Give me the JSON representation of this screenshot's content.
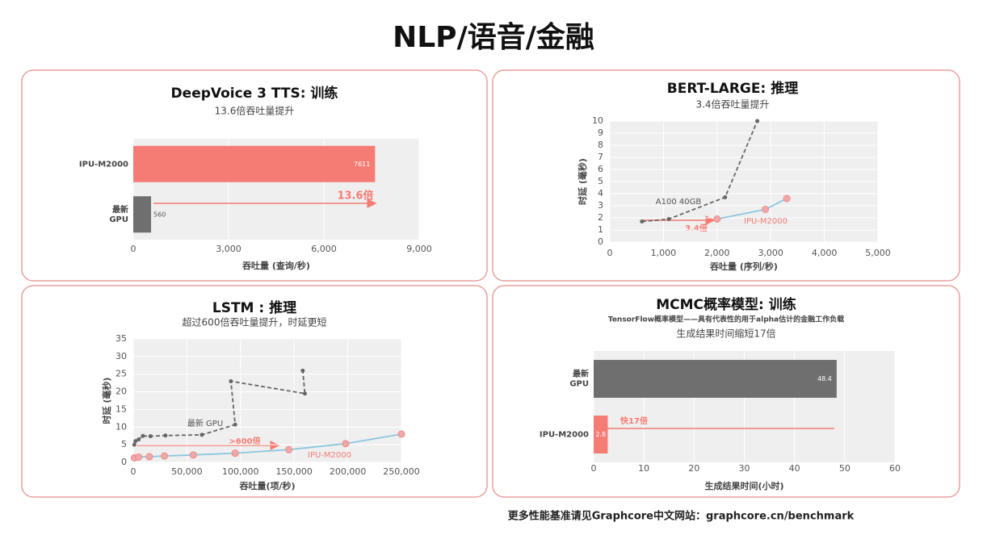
{
  "title": "NLP/语音/金融",
  "footer": "更多性能基准请见Graphcore中文网站：graphcore.cn/benchmark",
  "chart_data": [
    {
      "type": "hbar",
      "title": "DeepVoice 3 TTS: 训练",
      "subtitle": "13.6倍吞吐量提升",
      "categories": [
        "IPU-M2000",
        "最新 GPU"
      ],
      "values": [
        7611,
        560
      ],
      "colors": [
        "#f47c74",
        "#6f6f6f"
      ],
      "xlim": [
        0,
        9000
      ],
      "xticks": [
        0,
        {
          "value": 3000,
          "label": "3,000"
        },
        {
          "value": 6000,
          "label": "6,000"
        },
        {
          "value": 9000,
          "label": "9,000"
        }
      ],
      "xlabel": "吞吐量 (查询/秒)",
      "annotation": "13.6倍"
    },
    {
      "type": "line",
      "title": "BERT-LARGE: 推理",
      "subtitle": "3.4倍吞吐量提升",
      "xlim": [
        0,
        5000
      ],
      "xticks": [
        0,
        {
          "value": 1000,
          "label": "1,000"
        },
        {
          "value": 2000,
          "label": "2,000"
        },
        {
          "value": 3000,
          "label": "3,000"
        },
        {
          "value": 4000,
          "label": "4,000"
        },
        {
          "value": 5000,
          "label": "5,000"
        }
      ],
      "ylim": [
        0,
        10
      ],
      "yticks": [
        0,
        1,
        2,
        3,
        4,
        5,
        6,
        7,
        8,
        9,
        10
      ],
      "xlabel": "吞吐量 (序列/秒)",
      "ylabel": "时延 (毫秒)",
      "annotation": "3.4倍",
      "series": [
        {
          "name": "A100 40GB",
          "color": "#666666",
          "dashed": true,
          "x": [
            600,
            1100,
            2150,
            2750
          ],
          "values": [
            1.7,
            1.9,
            3.7,
            10
          ]
        },
        {
          "name": "IPU-M2000",
          "color": "#8cc6df",
          "marker_color": "#f2a7a7",
          "x": [
            2000,
            2900,
            3300
          ],
          "values": [
            1.9,
            2.7,
            3.6
          ]
        }
      ]
    },
    {
      "type": "line",
      "title": "LSTM : 推理",
      "subtitle": "超过600倍吞吐量提升，时延更短",
      "xlim": [
        0,
        250000
      ],
      "xticks": [
        0,
        {
          "value": 50000,
          "label": "50,000"
        },
        {
          "value": 100000,
          "label": "100,000"
        },
        {
          "value": 150000,
          "label": "150,000"
        },
        {
          "value": 200000,
          "label": "200,000"
        },
        {
          "value": 250000,
          "label": "250,000"
        }
      ],
      "ylim": [
        0,
        35
      ],
      "yticks": [
        0,
        5,
        10,
        15,
        20,
        25,
        30,
        35
      ],
      "xlabel": "吞吐量(项/秒)",
      "ylabel": "时延 (毫秒)",
      "annotation": ">600倍",
      "series": [
        {
          "name": "最新 GPU",
          "color": "#666666",
          "dashed": true,
          "x": [
            1000,
            2000,
            5000,
            9000,
            16000,
            30000,
            64000,
            95000,
            91000,
            160000,
            158000
          ],
          "values": [
            5,
            6,
            6.5,
            7.5,
            7.4,
            7.6,
            7.8,
            10.7,
            23,
            19.5,
            26
          ]
        },
        {
          "name": "IPU-M2000",
          "color": "#8cc6df",
          "marker_color": "#f2a7a7",
          "x": [
            1000,
            5000,
            15000,
            29000,
            56000,
            95000,
            145000,
            198000,
            250000
          ],
          "values": [
            1.3,
            1.5,
            1.6,
            1.8,
            2.1,
            2.6,
            3.6,
            5.3,
            8
          ]
        }
      ]
    },
    {
      "type": "hbar",
      "title": "MCMC概率模型: 训练",
      "subtitle": "TensorFlow概率模型——具有代表性的用于alpha估计的金融工作负载",
      "subtitle2": "生成结果时间缩短17倍",
      "categories": [
        "最新 GPU",
        "IPU-M2000"
      ],
      "values": [
        48.4,
        2.8
      ],
      "colors": [
        "#6f6f6f",
        "#f47c74"
      ],
      "xlim": [
        0,
        60
      ],
      "xticks": [
        0,
        10,
        20,
        30,
        40,
        50,
        60
      ],
      "xlabel": "生成结果时间(小时)",
      "annotation": "快17倍"
    }
  ]
}
